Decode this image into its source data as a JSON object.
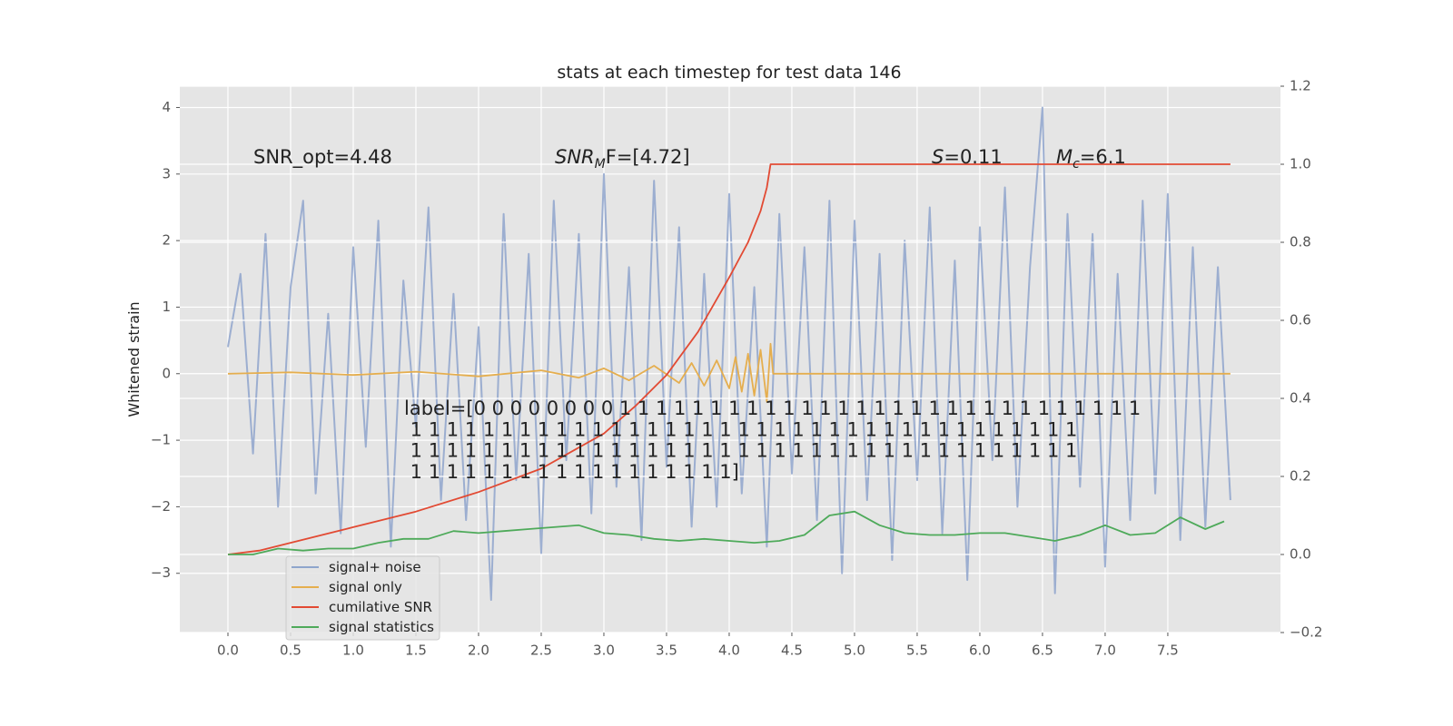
{
  "chart_data": {
    "type": "line",
    "title": "stats at each timestep for test data 146",
    "y_label": "Whitened strain",
    "xlim": [
      -0.384,
      8.399
    ],
    "ylim": [
      -3.89,
      4.32
    ],
    "y2lim": [
      -0.2,
      1.2
    ],
    "xticks": [
      {
        "value": 0,
        "label": "0.0"
      },
      {
        "value": 0.5,
        "label": "0.5"
      },
      {
        "value": 1,
        "label": "1.0"
      },
      {
        "value": 1.5,
        "label": "1.5"
      },
      {
        "value": 2,
        "label": "2.0"
      },
      {
        "value": 2.5,
        "label": "2.5"
      },
      {
        "value": 3,
        "label": "3.0"
      },
      {
        "value": 3.5,
        "label": "3.5"
      },
      {
        "value": 4,
        "label": "4.0"
      },
      {
        "value": 4.5,
        "label": "4.5"
      },
      {
        "value": 5,
        "label": "5.0"
      },
      {
        "value": 5.5,
        "label": "5.5"
      },
      {
        "value": 6,
        "label": "6.0"
      },
      {
        "value": 6.5,
        "label": "6.5"
      },
      {
        "value": 7,
        "label": "7.0"
      },
      {
        "value": 7.5,
        "label": "7.5"
      }
    ],
    "yticks": [
      {
        "value": -3,
        "label": "−3"
      },
      {
        "value": -2,
        "label": "−2"
      },
      {
        "value": -1,
        "label": "−1"
      },
      0,
      1,
      2,
      3,
      4
    ],
    "y2ticks": [
      {
        "value": -0.2,
        "label": "−0.2"
      },
      {
        "value": 0,
        "label": "0.0"
      },
      {
        "value": 0.2,
        "label": "0.2"
      },
      {
        "value": 0.4,
        "label": "0.4"
      },
      {
        "value": 0.6,
        "label": "0.6"
      },
      {
        "value": 0.8,
        "label": "0.8"
      },
      {
        "value": 1.0,
        "label": "1.0"
      },
      {
        "value": 1.2,
        "label": "1.2"
      }
    ],
    "grid": true,
    "legend": "lower left",
    "annotations": {
      "snr_opt": "SNR_opt=4.48",
      "snr_mf": [
        "SNR",
        "M",
        "F=[4.72]"
      ],
      "s": [
        "S",
        "=0.11"
      ],
      "mc": [
        "M",
        "c",
        "=6.1"
      ],
      "label": [
        "label=[0 0 0 0 0 0 0 0 1 1 1 1 1 1 1 1 1 1 1 1 1 1 1 1 1 1 1 1 1 1 1 1 1 1 1 1 1",
        " 1 1 1 1 1 1 1 1 1 1 1 1 1 1 1 1 1 1 1 1 1 1 1 1 1 1 1 1 1 1 1 1 1 1 1 1 1",
        " 1 1 1 1 1 1 1 1 1 1 1 1 1 1 1 1 1 1 1 1 1 1 1 1 1 1 1 1 1 1 1 1 1 1 1 1 1",
        " 1 1 1 1 1 1 1 1 1 1 1 1 1 1 1 1 1 1]"
      ]
    },
    "series": [
      {
        "name": "signal+ noise",
        "color": "#8fa5cc",
        "axis": "y",
        "x": [
          0,
          0.1,
          0.2,
          0.3,
          0.4,
          0.5,
          0.6,
          0.7,
          0.8,
          0.9,
          1,
          1.1,
          1.2,
          1.3,
          1.4,
          1.5,
          1.6,
          1.7,
          1.8,
          1.9,
          2,
          2.1,
          2.2,
          2.3,
          2.4,
          2.5,
          2.6,
          2.7,
          2.8,
          2.9,
          3,
          3.1,
          3.2,
          3.3,
          3.4,
          3.5,
          3.6,
          3.7,
          3.8,
          3.9,
          4,
          4.1,
          4.2,
          4.3,
          4.4,
          4.5,
          4.6,
          4.7,
          4.8,
          4.9,
          5,
          5.1,
          5.2,
          5.3,
          5.4,
          5.5,
          5.6,
          5.7,
          5.8,
          5.9,
          6,
          6.1,
          6.2,
          6.3,
          6.4,
          6.5,
          6.6,
          6.7,
          6.8,
          6.9,
          7,
          7.1,
          7.2,
          7.3,
          7.4,
          7.5,
          7.6,
          7.7,
          7.8,
          7.9,
          8
        ],
        "values": [
          0.4,
          1.5,
          -1.2,
          2.1,
          -2.0,
          1.3,
          2.6,
          -1.8,
          0.9,
          -2.4,
          1.9,
          -1.1,
          2.3,
          -2.6,
          1.4,
          -0.8,
          2.5,
          -1.9,
          1.2,
          -2.2,
          0.7,
          -3.4,
          2.4,
          -1.6,
          1.8,
          -2.7,
          2.6,
          -1.3,
          2.1,
          -2.1,
          3.0,
          -1.7,
          1.6,
          -2.5,
          2.9,
          -1.4,
          2.2,
          -2.3,
          1.5,
          -2.0,
          2.7,
          -1.8,
          1.3,
          -2.6,
          2.4,
          -1.5,
          1.9,
          -2.2,
          2.6,
          -3.0,
          2.3,
          -1.9,
          1.8,
          -2.8,
          2.0,
          -1.6,
          2.5,
          -2.4,
          1.7,
          -3.1,
          2.2,
          -1.3,
          2.8,
          -2.0,
          1.6,
          4.0,
          -3.3,
          2.4,
          -1.7,
          2.1,
          -2.9,
          1.5,
          -2.2,
          2.6,
          -1.8,
          2.7,
          -2.5,
          1.9,
          -2.3,
          1.6,
          -1.9
        ]
      },
      {
        "name": "signal only",
        "color": "#e5ae4e",
        "axis": "y",
        "x": [
          0,
          0.5,
          1,
          1.5,
          2,
          2.5,
          2.8,
          3.0,
          3.2,
          3.4,
          3.6,
          3.7,
          3.8,
          3.9,
          4.0,
          4.05,
          4.1,
          4.15,
          4.2,
          4.25,
          4.3,
          4.33,
          4.35,
          8.0
        ],
        "values": [
          0,
          0.02,
          -0.02,
          0.03,
          -0.04,
          0.05,
          -0.06,
          0.08,
          -0.1,
          0.12,
          -0.14,
          0.16,
          -0.18,
          0.2,
          -0.22,
          0.25,
          -0.27,
          0.3,
          -0.33,
          0.36,
          -0.42,
          0.45,
          0,
          0
        ]
      },
      {
        "name": "cumilative SNR",
        "color": "#e24a33",
        "axis": "y2",
        "x": [
          0,
          0.25,
          0.5,
          1,
          1.5,
          2,
          2.5,
          3,
          3.25,
          3.5,
          3.75,
          4,
          4.15,
          4.25,
          4.3,
          4.33,
          4.35,
          8.0
        ],
        "values": [
          0,
          0.01,
          0.03,
          0.07,
          0.11,
          0.16,
          0.22,
          0.31,
          0.38,
          0.46,
          0.57,
          0.71,
          0.8,
          0.88,
          0.94,
          1.0,
          1.0,
          1.0
        ]
      },
      {
        "name": "signal statistics",
        "color": "#4eaa5a",
        "axis": "y2",
        "x": [
          0,
          0.2,
          0.4,
          0.6,
          0.8,
          1.0,
          1.2,
          1.4,
          1.6,
          1.8,
          2.0,
          2.2,
          2.4,
          2.6,
          2.8,
          3.0,
          3.2,
          3.4,
          3.6,
          3.8,
          4.0,
          4.2,
          4.4,
          4.6,
          4.8,
          5.0,
          5.2,
          5.4,
          5.6,
          5.8,
          6.0,
          6.2,
          6.4,
          6.6,
          6.8,
          7.0,
          7.2,
          7.4,
          7.6,
          7.8,
          7.95
        ],
        "values": [
          0,
          0,
          0.015,
          0.01,
          0.015,
          0.015,
          0.03,
          0.04,
          0.04,
          0.06,
          0.055,
          0.06,
          0.065,
          0.07,
          0.075,
          0.055,
          0.05,
          0.04,
          0.035,
          0.04,
          0.035,
          0.03,
          0.035,
          0.05,
          0.1,
          0.11,
          0.075,
          0.055,
          0.05,
          0.05,
          0.055,
          0.055,
          0.045,
          0.035,
          0.05,
          0.075,
          0.05,
          0.055,
          0.095,
          0.065,
          0.085
        ]
      }
    ]
  }
}
